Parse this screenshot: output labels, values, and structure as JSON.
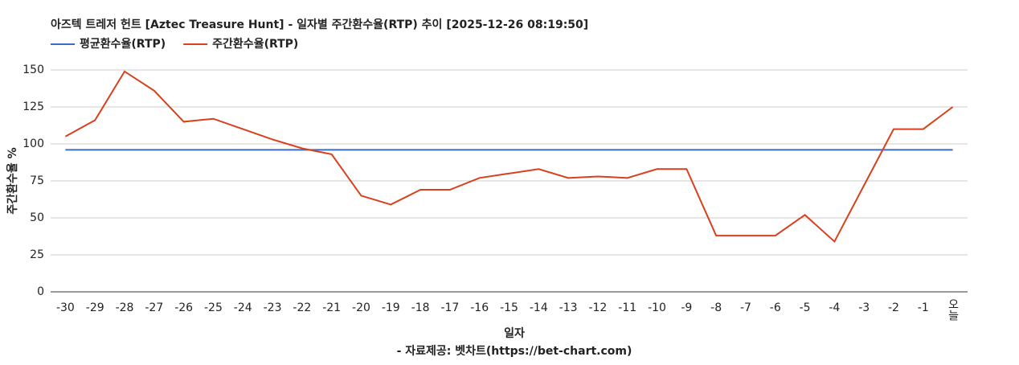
{
  "chart_data": {
    "type": "line",
    "title": "아즈텍 트레저 헌트 [Aztec Treasure Hunt] - 일자별 주간환수율(RTP) 추이 [2025-12-26 08:19:50]",
    "x_label": "일자",
    "y_label": "주간환수율 %",
    "footer": "- 자료제공: 벳차트(https://bet-chart.com)",
    "categories": [
      "-30",
      "-29",
      "-28",
      "-27",
      "-26",
      "-25",
      "-24",
      "-23",
      "-22",
      "-21",
      "-20",
      "-19",
      "-18",
      "-17",
      "-16",
      "-15",
      "-14",
      "-13",
      "-12",
      "-11",
      "-10",
      "-9",
      "-8",
      "-7",
      "-6",
      "-5",
      "-4",
      "-3",
      "-2",
      "-1",
      "오늘"
    ],
    "series": [
      {
        "name": "평균환수율(RTP)",
        "color": "#3c6cc8",
        "values": [
          96,
          96,
          96,
          96,
          96,
          96,
          96,
          96,
          96,
          96,
          96,
          96,
          96,
          96,
          96,
          96,
          96,
          96,
          96,
          96,
          96,
          96,
          96,
          96,
          96,
          96,
          96,
          96,
          96,
          96,
          96
        ]
      },
      {
        "name": "주간환수율(RTP)",
        "color": "#d8401e",
        "values": [
          105,
          116,
          149,
          136,
          115,
          117,
          110,
          103,
          97,
          93,
          65,
          59,
          69,
          69,
          77,
          80,
          83,
          77,
          78,
          77,
          83,
          83,
          38,
          38,
          38,
          52,
          34,
          72,
          110,
          110,
          125
        ]
      }
    ],
    "ylim": [
      0,
      150
    ],
    "yticks": [
      0,
      25,
      50,
      75,
      100,
      125,
      150
    ],
    "grid": true,
    "legend": "top-left"
  }
}
